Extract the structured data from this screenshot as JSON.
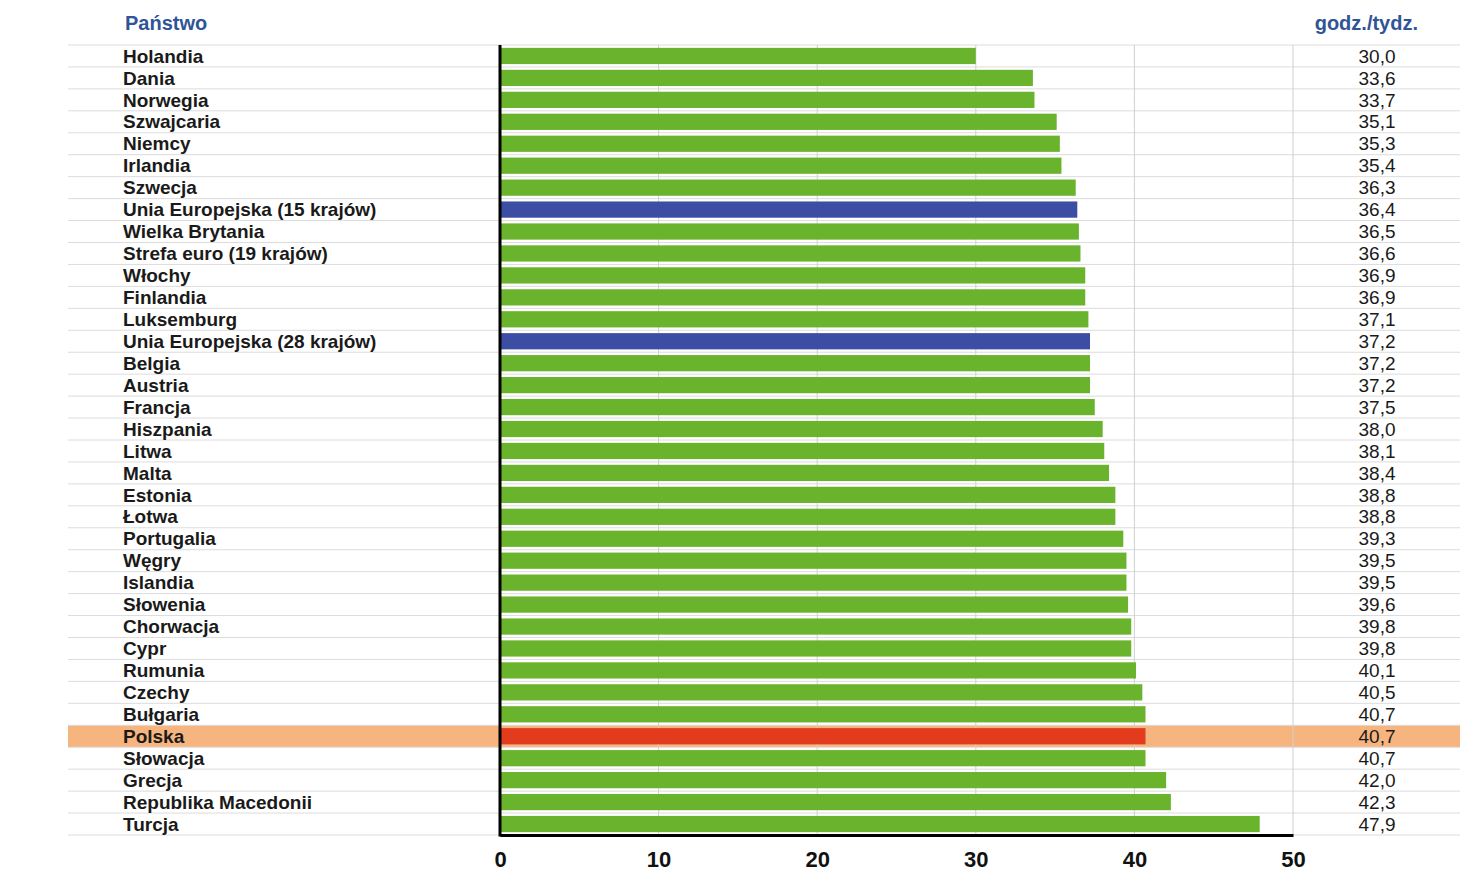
{
  "chart_data": {
    "type": "bar",
    "orientation": "horizontal",
    "ylabel": "Państwo",
    "annotations": [
      {
        "text": "godz./tydz."
      }
    ],
    "categories": [
      "Holandia",
      "Dania",
      "Norwegia",
      "Szwajcaria",
      "Niemcy",
      "Irlandia",
      "Szwecja",
      "Unia Europejska (15 krajów)",
      "Wielka Brytania",
      "Strefa euro (19 krajów)",
      "Włochy",
      "Finlandia",
      "Luksemburg",
      "Unia Europejska (28 krajów)",
      "Belgia",
      "Austria",
      "Francja",
      "Hiszpania",
      "Litwa",
      "Malta",
      "Estonia",
      "Łotwa",
      "Portugalia",
      "Węgry",
      "Islandia",
      "Słowenia",
      "Chorwacja",
      "Cypr",
      "Rumunia",
      "Czechy",
      "Bułgaria",
      "Polska",
      "Słowacja",
      "Grecja",
      "Republika Macedonii",
      "Turcja"
    ],
    "values": [
      30.0,
      33.6,
      33.7,
      35.1,
      35.3,
      35.4,
      36.3,
      36.4,
      36.5,
      36.6,
      36.9,
      36.9,
      37.1,
      37.2,
      37.2,
      37.2,
      37.5,
      38.0,
      38.1,
      38.4,
      38.8,
      38.8,
      39.3,
      39.5,
      39.5,
      39.6,
      39.8,
      39.8,
      40.1,
      40.5,
      40.7,
      40.7,
      40.7,
      42.0,
      42.3,
      47.9
    ],
    "value_labels": [
      "30,0",
      "33,6",
      "33,7",
      "35,1",
      "35,3",
      "35,4",
      "36,3",
      "36,4",
      "36,5",
      "36,6",
      "36,9",
      "36,9",
      "37,1",
      "37,2",
      "37,2",
      "37,2",
      "37,5",
      "38,0",
      "38,1",
      "38,4",
      "38,8",
      "38,8",
      "39,3",
      "39,5",
      "39,5",
      "39,6",
      "39,8",
      "39,8",
      "40,1",
      "40,5",
      "40,7",
      "40,7",
      "40,7",
      "42,0",
      "42,3",
      "47,9"
    ],
    "colors": [
      "#6ab42d",
      "#6ab42d",
      "#6ab42d",
      "#6ab42d",
      "#6ab42d",
      "#6ab42d",
      "#6ab42d",
      "#3b4ea3",
      "#6ab42d",
      "#6ab42d",
      "#6ab42d",
      "#6ab42d",
      "#6ab42d",
      "#3b4ea3",
      "#6ab42d",
      "#6ab42d",
      "#6ab42d",
      "#6ab42d",
      "#6ab42d",
      "#6ab42d",
      "#6ab42d",
      "#6ab42d",
      "#6ab42d",
      "#6ab42d",
      "#6ab42d",
      "#6ab42d",
      "#6ab42d",
      "#6ab42d",
      "#6ab42d",
      "#6ab42d",
      "#6ab42d",
      "#e23b1e",
      "#6ab42d",
      "#6ab42d",
      "#6ab42d",
      "#6ab42d"
    ],
    "xlim": [
      0,
      50
    ],
    "xticks": [
      0,
      10,
      20,
      30,
      40,
      50
    ],
    "grid": true,
    "data_labels": true
  }
}
